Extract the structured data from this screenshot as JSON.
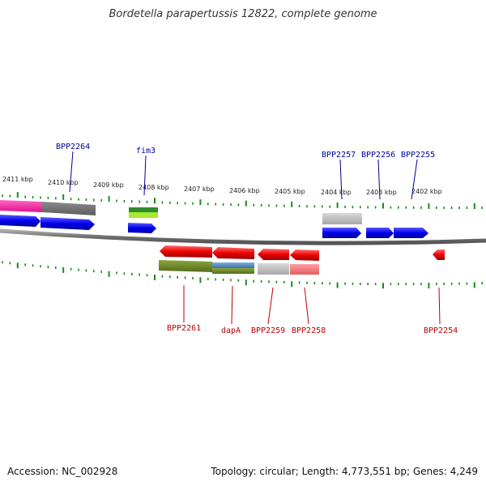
{
  "title": "Bordetella parapertussis 12822, complete genome",
  "footer": {
    "accession": "Accession: NC_002928",
    "topology": "Topology: circular; Length: 4,773,551 bp; Genes: 4,249"
  },
  "colors": {
    "forward_gene": "#0000ee",
    "reverse_gene": "#ee0000",
    "forward_label": "#000099",
    "reverse_label": "#bb0000",
    "tick": "#1a8a1a",
    "backbone": "#777777"
  },
  "scale_labels": [
    "2411 kbp",
    "2410 kbp",
    "2409 kbp",
    "2408 kbp",
    "2407 kbp",
    "2406 kbp",
    "2405 kbp",
    "2404 kbp",
    "2403 kbp",
    "2402 kbp"
  ],
  "forward_genes": [
    {
      "name": "BPP2264",
      "label": "BPP2264"
    },
    {
      "name": "fim3",
      "label": "fim3"
    },
    {
      "name": "BPP2257",
      "label": "BPP2257"
    },
    {
      "name": "BPP2256",
      "label": "BPP2256"
    },
    {
      "name": "BPP2255",
      "label": "BPP2255"
    }
  ],
  "reverse_genes": [
    {
      "name": "BPP2261",
      "label": "BPP2261"
    },
    {
      "name": "dapA",
      "label": "dapA"
    },
    {
      "name": "BPP2259",
      "label": "BPP2259"
    },
    {
      "name": "BPP2258",
      "label": "BPP2258"
    },
    {
      "name": "BPP2254",
      "label": "BPP2254"
    }
  ]
}
